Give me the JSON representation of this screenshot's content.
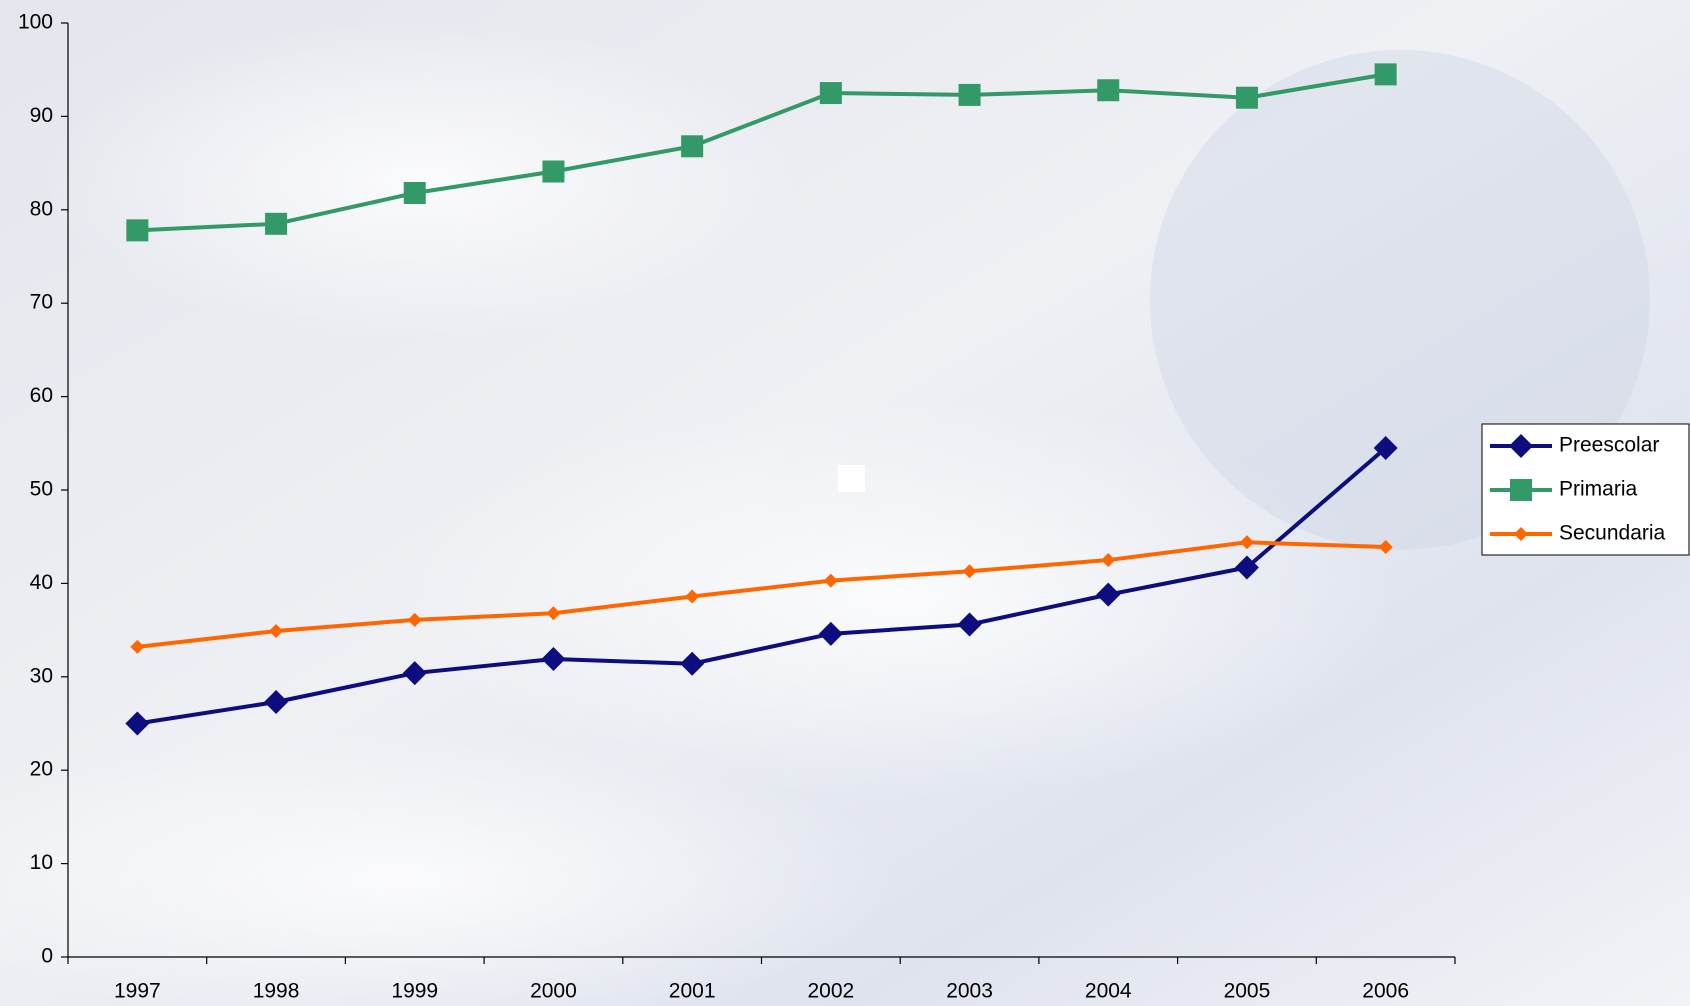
{
  "chart_data": {
    "type": "line",
    "categories": [
      "1997",
      "1998",
      "1999",
      "2000",
      "2001",
      "2002",
      "2003",
      "2004",
      "2005",
      "2006"
    ],
    "series": [
      {
        "name": "Preescolar",
        "color": "#0d0d80",
        "marker": "diamond",
        "values": [
          25.0,
          27.3,
          30.4,
          31.9,
          31.4,
          34.6,
          35.6,
          38.8,
          41.7,
          54.5
        ]
      },
      {
        "name": "Primaria",
        "color": "#339966",
        "marker": "square",
        "values": [
          77.8,
          78.5,
          81.8,
          84.1,
          86.8,
          92.5,
          92.3,
          92.8,
          92.0,
          94.5
        ]
      },
      {
        "name": "Secundaria",
        "color": "#ff6600",
        "marker": "small-diamond",
        "values": [
          33.2,
          34.9,
          36.1,
          36.8,
          38.6,
          40.3,
          41.3,
          42.5,
          44.4,
          43.9
        ]
      }
    ],
    "ylim": [
      0,
      100
    ],
    "yticks": [
      0,
      10,
      20,
      30,
      40,
      50,
      60,
      70,
      80,
      90,
      100
    ],
    "legend": "right"
  }
}
